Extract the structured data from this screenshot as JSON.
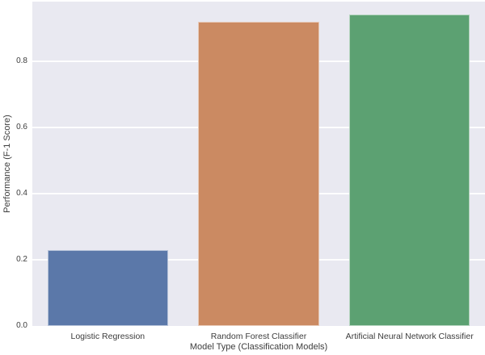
{
  "figure": {
    "background_color": "#ffffff",
    "plot_background_color": "#e9e9f1",
    "grid_color": "#ffffff",
    "text_color": "#3d3d3d"
  },
  "chart_data": {
    "type": "bar",
    "title": "",
    "xlabel": "Model Type (Classification Models)",
    "ylabel": "Performance (F-1 Score)",
    "categories": [
      "Logistic Regression",
      "Random Forest Classifier",
      "Artificial Neural Network Classifier"
    ],
    "values": [
      0.23,
      0.92,
      0.94
    ],
    "bar_colors": [
      "#5b78a9",
      "#cb8a62",
      "#5ca172"
    ],
    "ylim": [
      0,
      0.98
    ],
    "yticks": [
      0,
      0.2,
      0.4,
      0.6,
      0.8
    ],
    "ytick_labels": [
      "0.0",
      "0.2",
      "0.4",
      "0.6",
      "0.8"
    ],
    "grid": true,
    "grid_axis": "y",
    "legend": "none",
    "bar_width_fraction": 0.8
  }
}
